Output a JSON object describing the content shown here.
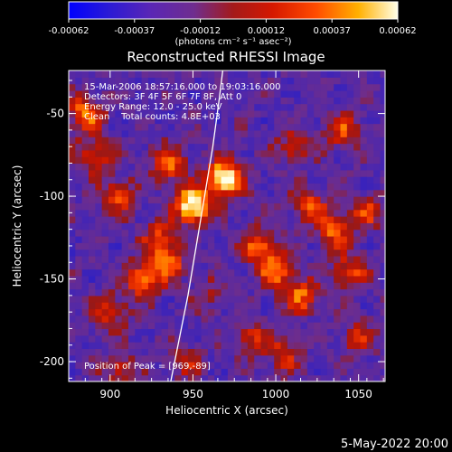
{
  "chart_data": {
    "type": "heatmap",
    "title": "Reconstructed RHESSI Image",
    "xlabel": "Heliocentric X (arcsec)",
    "ylabel": "Heliocentric Y (arcsec)",
    "xlim": [
      875,
      1066
    ],
    "ylim": [
      -212,
      -24
    ],
    "xticks": [
      900,
      950,
      1000,
      1050
    ],
    "yticks": [
      -50,
      -100,
      -150,
      -200
    ],
    "colorbar": {
      "min": -0.00062,
      "max": 0.00062,
      "ticks": [
        "-0.00062",
        "-0.00037",
        "-0.00012",
        "0.00012",
        "0.00037",
        "0.00062"
      ],
      "unit_label": "(photons cm⁻² s⁻¹ asec⁻²)"
    },
    "annotations": {
      "time_range": "15-Mar-2006 18:57:16.000 to 19:03:16.000",
      "detectors": "Detectors: 3F 4F 5F 6F 7F 8F, Att 0",
      "energy_range": "Energy Range: 12.0 - 25.0 keV",
      "clean": "Clean    Total counts: 4.8E+03",
      "peak": "Position of Peak = [969,-89]"
    },
    "grid": false,
    "sources": [
      {
        "x": 950,
        "y": -105,
        "peak": 1.0
      },
      {
        "x": 969,
        "y": -89,
        "peak": 1.0
      },
      {
        "x": 935,
        "y": -80,
        "peak": 0.55
      },
      {
        "x": 885,
        "y": -50,
        "peak": 0.6
      },
      {
        "x": 890,
        "y": -75,
        "peak": 0.45
      },
      {
        "x": 905,
        "y": -100,
        "peak": 0.5
      },
      {
        "x": 930,
        "y": -125,
        "peak": 0.45
      },
      {
        "x": 920,
        "y": -150,
        "peak": 0.6
      },
      {
        "x": 935,
        "y": -140,
        "peak": 0.5
      },
      {
        "x": 900,
        "y": -170,
        "peak": 0.4
      },
      {
        "x": 905,
        "y": -205,
        "peak": 0.35
      },
      {
        "x": 945,
        "y": -200,
        "peak": 0.3
      },
      {
        "x": 985,
        "y": -185,
        "peak": 0.35
      },
      {
        "x": 990,
        "y": -130,
        "peak": 0.55
      },
      {
        "x": 1000,
        "y": -145,
        "peak": 0.55
      },
      {
        "x": 1015,
        "y": -160,
        "peak": 0.55
      },
      {
        "x": 1020,
        "y": -105,
        "peak": 0.45
      },
      {
        "x": 1035,
        "y": -120,
        "peak": 0.55
      },
      {
        "x": 1045,
        "y": -145,
        "peak": 0.45
      },
      {
        "x": 1055,
        "y": -110,
        "peak": 0.4
      },
      {
        "x": 1040,
        "y": -60,
        "peak": 0.45
      },
      {
        "x": 1010,
        "y": -70,
        "peak": 0.35
      },
      {
        "x": 1005,
        "y": -195,
        "peak": 0.4
      },
      {
        "x": 1050,
        "y": -185,
        "peak": 0.35
      },
      {
        "x": 960,
        "y": -160,
        "peak": 0.25
      }
    ],
    "limb_curve": [
      [
        936,
        -215
      ],
      [
        941,
        -190
      ],
      [
        947,
        -160
      ],
      [
        952,
        -130
      ],
      [
        957,
        -100
      ],
      [
        962,
        -70
      ],
      [
        966,
        -40
      ],
      [
        968,
        -24
      ]
    ]
  },
  "footer": {
    "date": "5-May-2022 20:00"
  }
}
